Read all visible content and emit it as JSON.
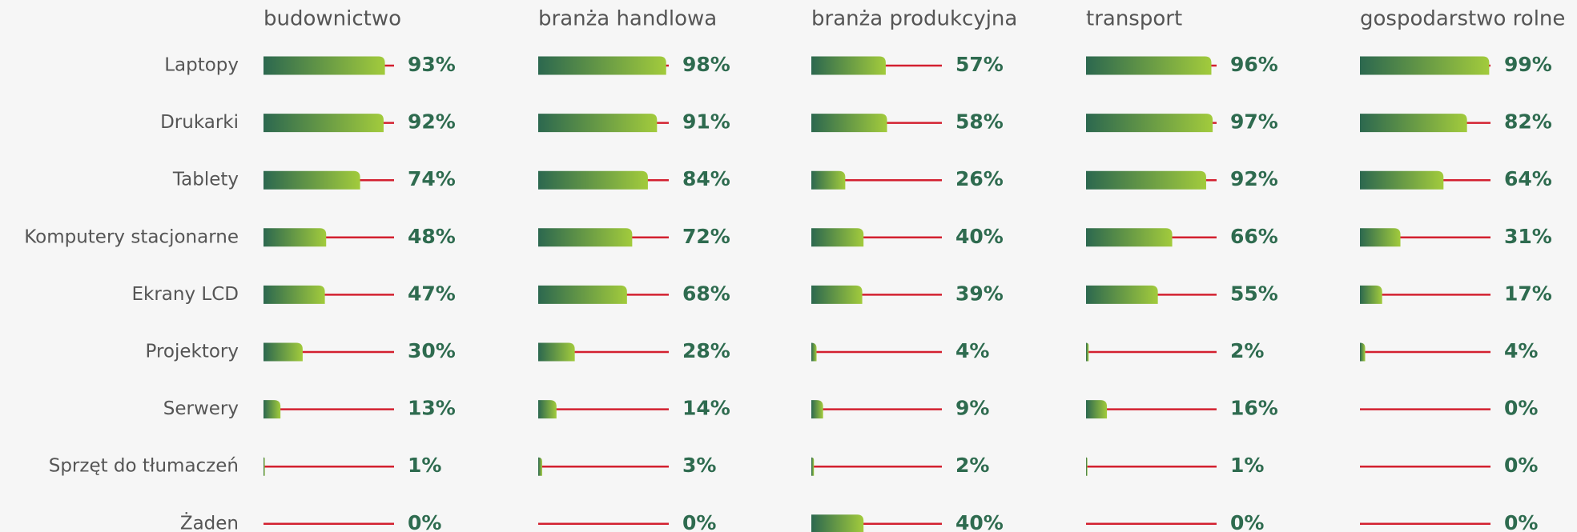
{
  "chart_data": {
    "type": "bar",
    "categories": [
      "Laptopy",
      "Drukarki",
      "Tablety",
      "Komputery stacjonarne",
      "Ekrany LCD",
      "Projektory",
      "Serwery",
      "Sprzęt do tłumaczeń",
      "Żaden"
    ],
    "series": [
      {
        "name": "budownictwo",
        "values": [
          93,
          92,
          74,
          48,
          47,
          30,
          13,
          1,
          0
        ],
        "value_labels": [
          "93%",
          "92%",
          "74%",
          "48%",
          "47%",
          "30%",
          "13%",
          "1%",
          "0%"
        ]
      },
      {
        "name": "branża handlowa",
        "values": [
          98,
          91,
          84,
          72,
          68,
          28,
          14,
          3,
          0
        ],
        "value_labels": [
          "98%",
          "91%",
          "84%",
          "72%",
          "68%",
          "28%",
          "14%",
          "3%",
          "0%"
        ]
      },
      {
        "name": "branża produkcyjna",
        "values": [
          57,
          58,
          26,
          40,
          39,
          4,
          9,
          2,
          40
        ],
        "value_labels": [
          "57%",
          "58%",
          "26%",
          "40%",
          "39%",
          "4%",
          "9%",
          "2%",
          "40%"
        ]
      },
      {
        "name": "transport",
        "values": [
          96,
          97,
          92,
          66,
          55,
          2,
          16,
          1,
          0
        ],
        "value_labels": [
          "96%",
          "97%",
          "92%",
          "66%",
          "55%",
          "2%",
          "16%",
          "1%",
          "0%"
        ]
      },
      {
        "name": "gospodarstwo rolne",
        "values": [
          99,
          82,
          64,
          31,
          17,
          4,
          0,
          0,
          0
        ],
        "value_labels": [
          "99%",
          "82%",
          "64%",
          "31%",
          "17%",
          "4%",
          "0%",
          "0%",
          "0%"
        ]
      }
    ],
    "xlim": [
      0,
      100
    ],
    "bar_colors": [
      "#2c684f",
      "#a2cb3c"
    ],
    "track_color": "#d3202f"
  }
}
